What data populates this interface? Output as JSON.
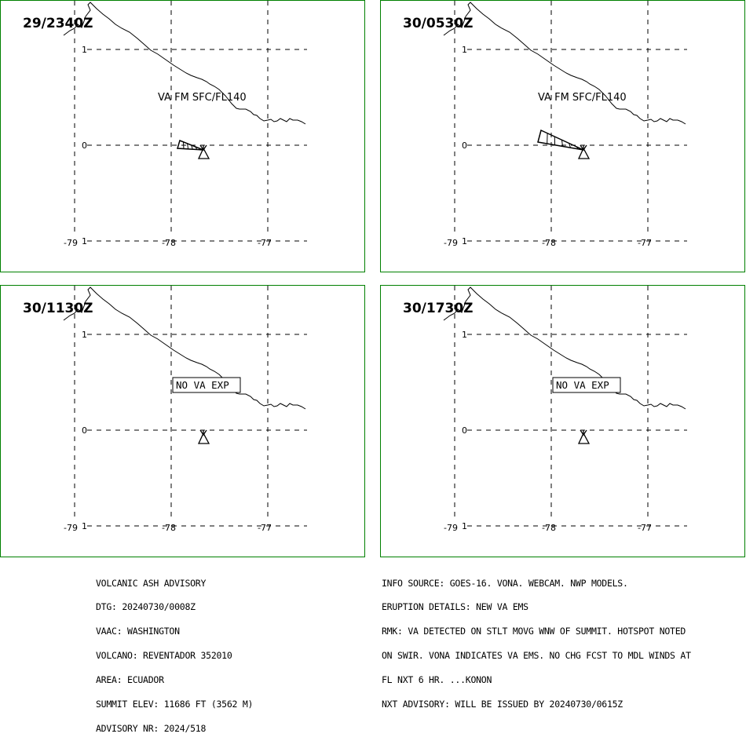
{
  "map": {
    "panels": [
      {
        "time": "29/2340Z",
        "label": "VA FM SFC/FL140",
        "label_type": "plain",
        "ash": "small"
      },
      {
        "time": "30/0530Z",
        "label": "VA FM SFC/FL140",
        "label_type": "plain",
        "ash": "large"
      },
      {
        "time": "30/1130Z",
        "label": "NO VA EXP",
        "label_type": "boxed",
        "ash": "none"
      },
      {
        "time": "30/1730Z",
        "label": "NO VA EXP",
        "label_type": "boxed",
        "ash": "none"
      }
    ],
    "lat_labels": [
      "1",
      "0"
    ],
    "lon_labels": [
      "-79",
      "-78",
      "-77"
    ],
    "colors": {
      "frame": "#008000",
      "ink": "#000000"
    }
  },
  "advisory_left": [
    "VOLCANIC ASH ADVISORY",
    "DTG: 20240730/0008Z",
    "VAAC: WASHINGTON",
    "VOLCANO: REVENTADOR 352010",
    "AREA: ECUADOR",
    "SUMMIT ELEV: 11686 FT (3562 M)",
    "ADVISORY NR: 2024/518"
  ],
  "advisory_right": [
    "INFO SOURCE: GOES-16. VONA. WEBCAM. NWP MODELS.",
    "ERUPTION DETAILS: NEW VA EMS",
    "RMK: VA DETECTED ON STLT MOVG WNW OF SUMMIT. HOTSPOT NOTED",
    "ON SWIR. VONA INDICATES VA EMS. NO CHG FCST TO MDL WINDS AT",
    "FL NXT 6 HR. ...KONON",
    "NXT ADVISORY: WILL BE ISSUED BY 20240730/0615Z"
  ]
}
